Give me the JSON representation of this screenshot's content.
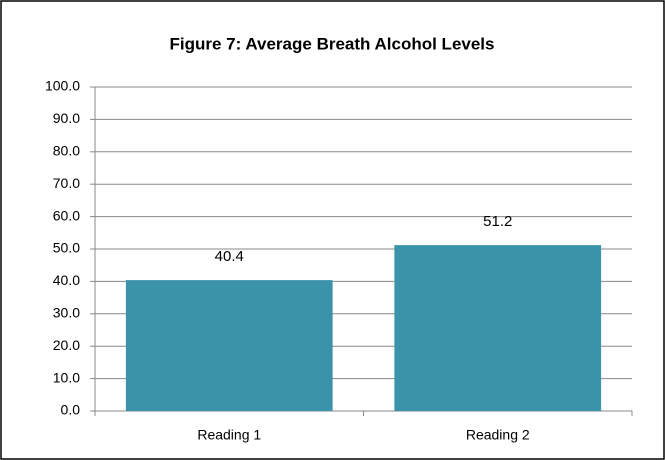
{
  "chart_data": {
    "type": "bar",
    "title": "Figure 7: Average Breath Alcohol Levels",
    "categories": [
      "Reading 1",
      "Reading 2"
    ],
    "values": [
      40.4,
      51.2
    ],
    "color": "#3a93a8",
    "ylim": [
      0,
      100
    ],
    "yticks": [
      {
        "value": 0,
        "label": "0.0"
      },
      {
        "value": 10,
        "label": "10.0"
      },
      {
        "value": 20,
        "label": "20.0"
      },
      {
        "value": 30,
        "label": "30.0"
      },
      {
        "value": 40,
        "label": "40.0"
      },
      {
        "value": 50,
        "label": "50.0"
      },
      {
        "value": 60,
        "label": "60.0"
      },
      {
        "value": 70,
        "label": "70.0"
      },
      {
        "value": 80,
        "label": "80.0"
      },
      {
        "value": 90,
        "label": "90.0"
      },
      {
        "value": 100,
        "label": "100.0"
      }
    ],
    "grid": true
  }
}
